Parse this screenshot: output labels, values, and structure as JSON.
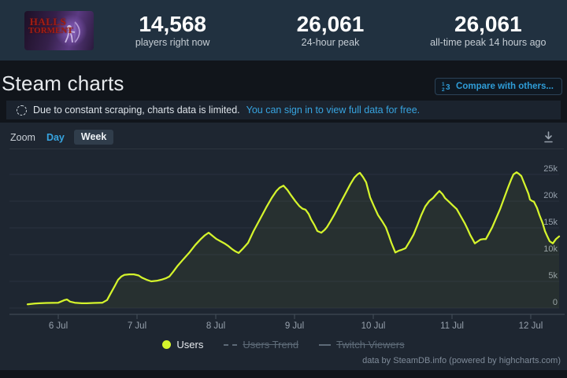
{
  "topbar": {
    "capsule": {
      "game": "Halls of Torment",
      "line1": "HALLS",
      "line2": "TORMENT"
    },
    "stats": [
      {
        "value": "14,568",
        "label": "players right now"
      },
      {
        "value": "26,061",
        "label": "24-hour peak"
      },
      {
        "value": "26,061",
        "label": "all-time peak 14 hours ago"
      }
    ]
  },
  "header": {
    "title": "Steam charts",
    "compare_label": "Compare with others..."
  },
  "notice": {
    "text": "Due to constant scraping, charts data is limited.",
    "link_text": "You can sign in to view full data for free."
  },
  "toolbar": {
    "zoom_label": "Zoom",
    "day_label": "Day",
    "week_label": "Week"
  },
  "legend": [
    {
      "label": "Users",
      "enabled": true,
      "marker": "dot",
      "color": "#d5f42c"
    },
    {
      "label": "Users Trend",
      "enabled": false,
      "marker": "dashed-line"
    },
    {
      "label": "Twitch Viewers",
      "enabled": false,
      "marker": "solid-line"
    }
  ],
  "credits": "data by SteamDB.info (powered by highcharts.com)",
  "colors": {
    "accent_line": "#d5f42c",
    "link_blue": "#37a4e0",
    "axis_label": "#96a0ac",
    "gridline": "#2a3140",
    "axis_line": "#46505c"
  },
  "chart_data": {
    "type": "line",
    "title": "",
    "xlabel": "",
    "ylabel": "",
    "xlim": [
      -0.39,
      6.36
    ],
    "ylim": [
      0,
      29400
    ],
    "grid": true,
    "legend_position": "bottom",
    "x_ticks": [
      {
        "t": 0,
        "label": "6 Jul"
      },
      {
        "t": 1,
        "label": "7 Jul"
      },
      {
        "t": 2,
        "label": "8 Jul"
      },
      {
        "t": 3,
        "label": "9 Jul"
      },
      {
        "t": 4,
        "label": "10 Jul"
      },
      {
        "t": 5,
        "label": "11 Jul"
      },
      {
        "t": 6,
        "label": "12 Jul"
      }
    ],
    "y_ticks": [
      {
        "v": 0,
        "label": "0"
      },
      {
        "v": 5000,
        "label": "5k"
      },
      {
        "v": 10000,
        "label": "10k"
      },
      {
        "v": 15000,
        "label": "15k"
      },
      {
        "v": 20000,
        "label": "20k"
      },
      {
        "v": 25000,
        "label": "25k"
      }
    ],
    "series": [
      {
        "name": "Users",
        "color": "#d5f42c",
        "points": [
          [
            -0.39,
            700
          ],
          [
            -0.3,
            850
          ],
          [
            -0.24,
            900
          ],
          [
            -0.15,
            950
          ],
          [
            0.0,
            1000
          ],
          [
            0.08,
            1500
          ],
          [
            0.11,
            1600
          ],
          [
            0.15,
            1200
          ],
          [
            0.21,
            1000
          ],
          [
            0.3,
            900
          ],
          [
            0.36,
            900
          ],
          [
            0.45,
            950
          ],
          [
            0.56,
            1000
          ],
          [
            0.62,
            1500
          ],
          [
            0.66,
            2600
          ],
          [
            0.72,
            4200
          ],
          [
            0.76,
            5300
          ],
          [
            0.8,
            5900
          ],
          [
            0.84,
            6200
          ],
          [
            0.9,
            6300
          ],
          [
            0.96,
            6300
          ],
          [
            1.02,
            6100
          ],
          [
            1.06,
            5700
          ],
          [
            1.12,
            5300
          ],
          [
            1.18,
            5000
          ],
          [
            1.25,
            5100
          ],
          [
            1.31,
            5300
          ],
          [
            1.37,
            5600
          ],
          [
            1.41,
            5900
          ],
          [
            1.46,
            6800
          ],
          [
            1.51,
            7800
          ],
          [
            1.58,
            9000
          ],
          [
            1.66,
            10300
          ],
          [
            1.74,
            11800
          ],
          [
            1.81,
            12900
          ],
          [
            1.86,
            13600
          ],
          [
            1.91,
            14100
          ],
          [
            1.96,
            13500
          ],
          [
            2.01,
            12900
          ],
          [
            2.06,
            12500
          ],
          [
            2.11,
            12100
          ],
          [
            2.16,
            11600
          ],
          [
            2.21,
            11000
          ],
          [
            2.25,
            10600
          ],
          [
            2.29,
            10300
          ],
          [
            2.35,
            11200
          ],
          [
            2.41,
            12200
          ],
          [
            2.48,
            14400
          ],
          [
            2.56,
            16600
          ],
          [
            2.64,
            18800
          ],
          [
            2.71,
            20600
          ],
          [
            2.77,
            21900
          ],
          [
            2.81,
            22500
          ],
          [
            2.86,
            22900
          ],
          [
            2.91,
            22100
          ],
          [
            2.96,
            21000
          ],
          [
            3.01,
            20000
          ],
          [
            3.06,
            19100
          ],
          [
            3.1,
            18600
          ],
          [
            3.14,
            18400
          ],
          [
            3.18,
            17600
          ],
          [
            3.21,
            16600
          ],
          [
            3.25,
            15600
          ],
          [
            3.29,
            14400
          ],
          [
            3.34,
            14100
          ],
          [
            3.38,
            14600
          ],
          [
            3.41,
            15100
          ],
          [
            3.46,
            16300
          ],
          [
            3.51,
            17600
          ],
          [
            3.58,
            19600
          ],
          [
            3.66,
            21800
          ],
          [
            3.71,
            23200
          ],
          [
            3.76,
            24400
          ],
          [
            3.8,
            25000
          ],
          [
            3.83,
            25300
          ],
          [
            3.87,
            24500
          ],
          [
            3.91,
            23500
          ],
          [
            3.96,
            20700
          ],
          [
            4.01,
            19000
          ],
          [
            4.06,
            17400
          ],
          [
            4.11,
            16300
          ],
          [
            4.16,
            15100
          ],
          [
            4.2,
            13500
          ],
          [
            4.23,
            12200
          ],
          [
            4.28,
            10400
          ],
          [
            4.32,
            10700
          ],
          [
            4.36,
            10900
          ],
          [
            4.41,
            11200
          ],
          [
            4.46,
            12400
          ],
          [
            4.51,
            13700
          ],
          [
            4.56,
            15500
          ],
          [
            4.61,
            17400
          ],
          [
            4.66,
            19000
          ],
          [
            4.71,
            20000
          ],
          [
            4.76,
            20600
          ],
          [
            4.8,
            21300
          ],
          [
            4.84,
            21900
          ],
          [
            4.88,
            21300
          ],
          [
            4.91,
            20600
          ],
          [
            4.96,
            19900
          ],
          [
            5.01,
            19200
          ],
          [
            5.06,
            18500
          ],
          [
            5.11,
            17200
          ],
          [
            5.16,
            15900
          ],
          [
            5.2,
            14700
          ],
          [
            5.23,
            13700
          ],
          [
            5.26,
            12900
          ],
          [
            5.29,
            12100
          ],
          [
            5.33,
            12500
          ],
          [
            5.36,
            12800
          ],
          [
            5.4,
            12900
          ],
          [
            5.43,
            12900
          ],
          [
            5.47,
            14000
          ],
          [
            5.51,
            15100
          ],
          [
            5.56,
            16800
          ],
          [
            5.61,
            18500
          ],
          [
            5.66,
            20500
          ],
          [
            5.71,
            22500
          ],
          [
            5.75,
            24000
          ],
          [
            5.78,
            25000
          ],
          [
            5.82,
            25400
          ],
          [
            5.85,
            25100
          ],
          [
            5.88,
            24700
          ],
          [
            5.91,
            23600
          ],
          [
            5.94,
            22500
          ],
          [
            5.97,
            21400
          ],
          [
            5.99,
            20300
          ],
          [
            6.02,
            20000
          ],
          [
            6.04,
            19900
          ],
          [
            6.08,
            18700
          ],
          [
            6.11,
            17400
          ],
          [
            6.15,
            15900
          ],
          [
            6.18,
            14400
          ],
          [
            6.21,
            13400
          ],
          [
            6.24,
            12500
          ],
          [
            6.28,
            12100
          ],
          [
            6.32,
            12900
          ],
          [
            6.36,
            13400
          ]
        ]
      },
      {
        "name": "Users Trend",
        "enabled": false,
        "points": []
      },
      {
        "name": "Twitch Viewers",
        "enabled": false,
        "points": []
      }
    ]
  }
}
